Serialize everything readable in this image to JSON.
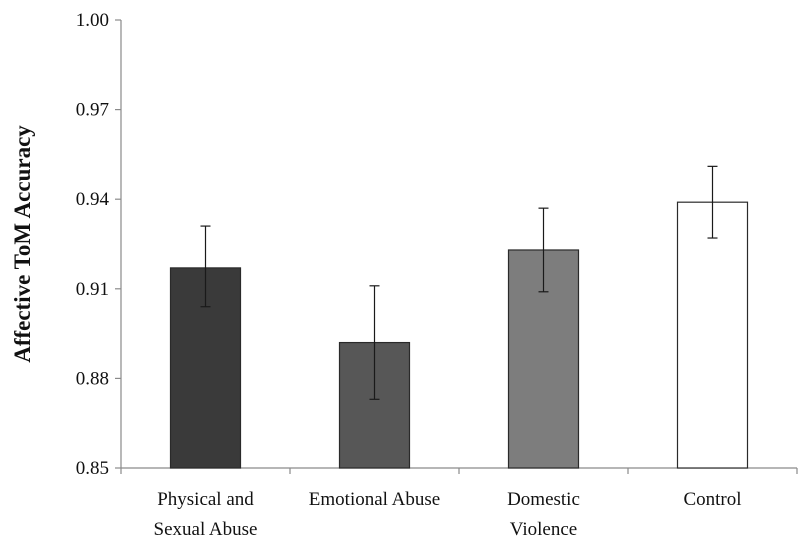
{
  "chart_data": {
    "type": "bar",
    "title": "",
    "xlabel": "",
    "ylabel": "Affective ToM Accuracy",
    "ylim": [
      0.85,
      1.0
    ],
    "yticks": [
      "0.85",
      "0.88",
      "0.91",
      "0.94",
      "0.97",
      "1.00"
    ],
    "grid": false,
    "categories": [
      [
        "Physical and",
        "Sexual Abuse"
      ],
      [
        "Emotional Abuse"
      ],
      [
        "Domestic",
        "Violence"
      ],
      [
        "Control"
      ]
    ],
    "values": [
      0.917,
      0.892,
      0.923,
      0.939
    ],
    "error_low": [
      0.904,
      0.873,
      0.909,
      0.927
    ],
    "error_high": [
      0.931,
      0.911,
      0.937,
      0.951
    ],
    "colors": [
      "#3a3a3a",
      "#575757",
      "#7d7d7d",
      "#ffffff"
    ]
  }
}
